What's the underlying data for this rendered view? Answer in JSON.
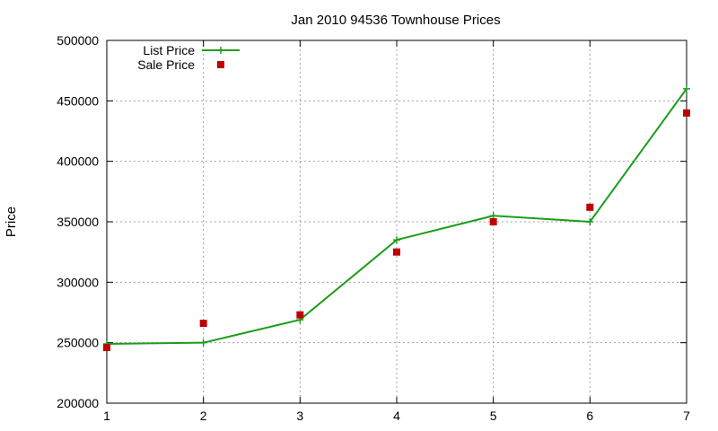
{
  "chart_data": {
    "type": "line",
    "title": "Jan 2010 94536 Townhouse Prices",
    "xlabel": "",
    "ylabel": "Price",
    "xlim": [
      1,
      7
    ],
    "ylim": [
      200000,
      500000
    ],
    "xticks": [
      1,
      2,
      3,
      4,
      5,
      6,
      7
    ],
    "yticks": [
      200000,
      250000,
      300000,
      350000,
      400000,
      450000,
      500000
    ],
    "grid": true,
    "legend_position": "top-left",
    "series": [
      {
        "name": "List Price",
        "style": "line+points",
        "marker": "plus",
        "color": "#1a9e1a",
        "x": [
          1,
          2,
          3,
          4,
          5,
          6,
          7
        ],
        "y": [
          249000,
          250000,
          269000,
          335000,
          355000,
          350000,
          460000
        ]
      },
      {
        "name": "Sale Price",
        "style": "points",
        "marker": "square",
        "color": "#c00000",
        "x": [
          1,
          2,
          3,
          4,
          5,
          6,
          7
        ],
        "y": [
          246000,
          266000,
          273000,
          325000,
          350000,
          362000,
          440000
        ]
      }
    ]
  }
}
